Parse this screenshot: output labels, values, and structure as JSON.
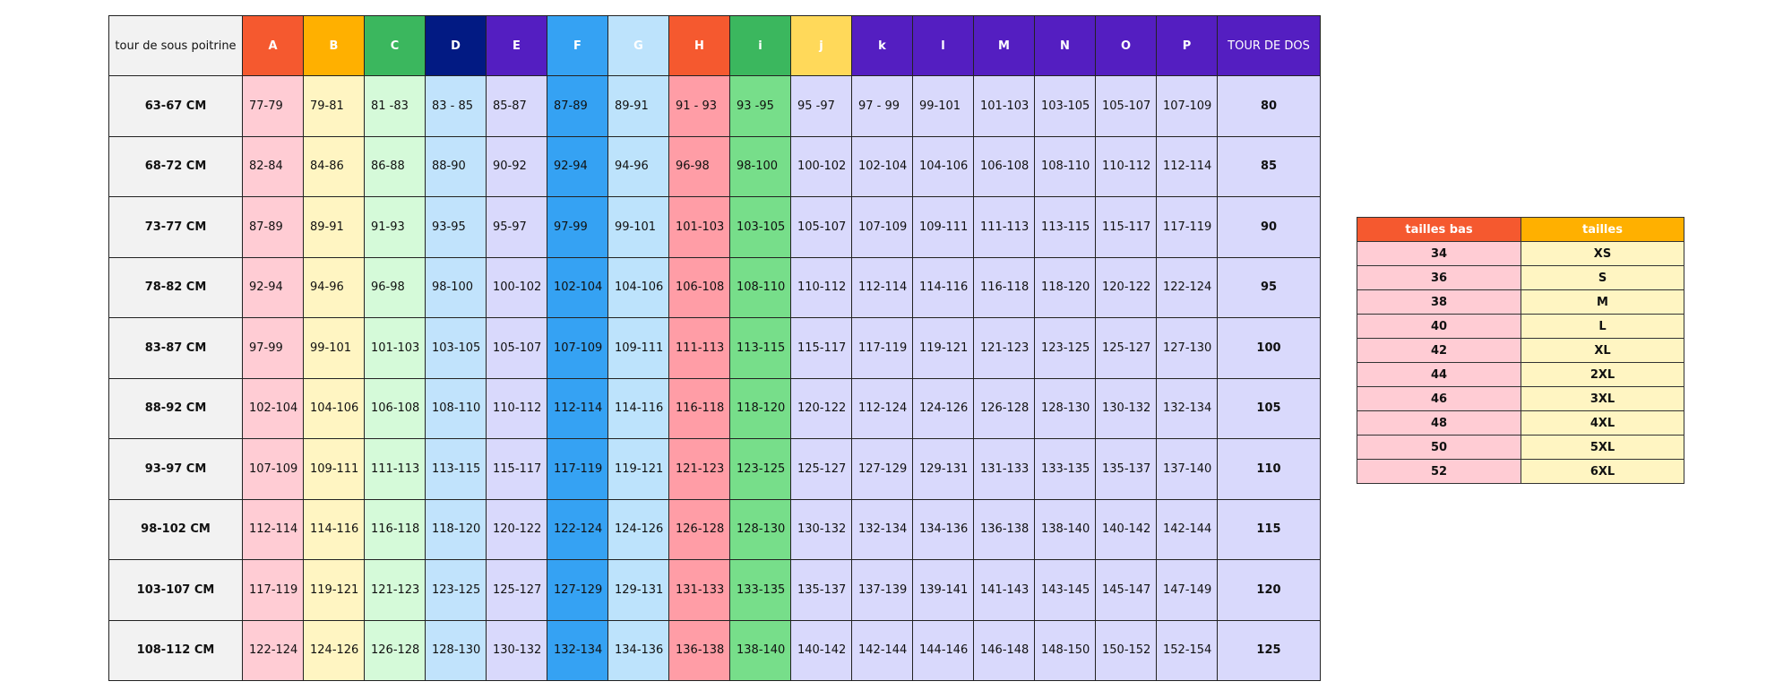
{
  "main_table": {
    "header_label": "tour de sous poitrine",
    "columns": [
      {
        "label": "A",
        "header_color": "#F5592F",
        "cell_color": "#FFCCD4"
      },
      {
        "label": "B",
        "header_color": "#FFB000",
        "cell_color": "#FFF5C2"
      },
      {
        "label": "C",
        "header_color": "#3BB75E",
        "cell_color": "#D5FAD9"
      },
      {
        "label": "D",
        "header_color": "#021A83",
        "cell_color": "#C1E3FC"
      },
      {
        "label": "E",
        "header_color": "#541EC1",
        "cell_color": "#D9D9FC"
      },
      {
        "label": "F",
        "header_color": "#35A2F3",
        "cell_color": "#35A2F3"
      },
      {
        "label": "G",
        "header_color": "#BDE3FC",
        "cell_color": "#BDE3FC"
      },
      {
        "label": "H",
        "header_color": "#F5592F",
        "cell_color": "#FF9DA6"
      },
      {
        "label": "i",
        "header_color": "#3BB75E",
        "cell_color": "#77DE8A"
      },
      {
        "label": "j",
        "header_color": "#FFD95A",
        "cell_color": "#D9D9FC"
      },
      {
        "label": "k",
        "header_color": "#541EC1",
        "cell_color": "#D9D9FC"
      },
      {
        "label": "l",
        "header_color": "#541EC1",
        "cell_color": "#D9D9FC"
      },
      {
        "label": "M",
        "header_color": "#541EC1",
        "cell_color": "#D9D9FC"
      },
      {
        "label": "N",
        "header_color": "#541EC1",
        "cell_color": "#D9D9FC"
      },
      {
        "label": "O",
        "header_color": "#541EC1",
        "cell_color": "#D9D9FC"
      },
      {
        "label": "P",
        "header_color": "#541EC1",
        "cell_color": "#D9D9FC"
      }
    ],
    "last_header": {
      "label": "TOUR DE DOS",
      "header_color": "#541EC1",
      "cell_color": "#D9D9FC"
    },
    "rows": [
      {
        "label": "63-67 CM",
        "cells": [
          "77-79",
          "79-81",
          "81 -83",
          "83 - 85",
          "85-87",
          "87-89",
          "89-91",
          "91 - 93",
          "93 -95",
          "95 -97",
          "97 - 99",
          "99-101",
          "101-103",
          "103-105",
          "105-107",
          "107-109"
        ],
        "back": "80"
      },
      {
        "label": "68-72 CM",
        "cells": [
          "82-84",
          "84-86",
          "86-88",
          "88-90",
          "90-92",
          "92-94",
          "94-96",
          "96-98",
          "98-100",
          "100-102",
          "102-104",
          "104-106",
          "106-108",
          "108-110",
          "110-112",
          "112-114"
        ],
        "back": "85"
      },
      {
        "label": "73-77 CM",
        "cells": [
          "87-89",
          "89-91",
          "91-93",
          "93-95",
          "95-97",
          "97-99",
          "99-101",
          "101-103",
          "103-105",
          "105-107",
          "107-109",
          "109-111",
          "111-113",
          "113-115",
          "115-117",
          "117-119"
        ],
        "back": "90"
      },
      {
        "label": "78-82 CM",
        "cells": [
          "92-94",
          "94-96",
          "96-98",
          "98-100",
          "100-102",
          "102-104",
          "104-106",
          "106-108",
          "108-110",
          "110-112",
          "112-114",
          "114-116",
          "116-118",
          "118-120",
          "120-122",
          "122-124"
        ],
        "back": "95"
      },
      {
        "label": "83-87 CM",
        "cells": [
          "97-99",
          "99-101",
          "101-103",
          "103-105",
          "105-107",
          "107-109",
          "109-111",
          "111-113",
          "113-115",
          "115-117",
          "117-119",
          "119-121",
          "121-123",
          "123-125",
          "125-127",
          "127-130"
        ],
        "back": "100"
      },
      {
        "label": "88-92 CM",
        "cells": [
          "102-104",
          "104-106",
          "106-108",
          "108-110",
          "110-112",
          "112-114",
          "114-116",
          "116-118",
          "118-120",
          "120-122",
          "112-124",
          "124-126",
          "126-128",
          "128-130",
          "130-132",
          "132-134"
        ],
        "back": "105"
      },
      {
        "label": "93-97 CM",
        "cells": [
          "107-109",
          "109-111",
          "111-113",
          "113-115",
          "115-117",
          "117-119",
          "119-121",
          "121-123",
          "123-125",
          "125-127",
          "127-129",
          "129-131",
          "131-133",
          "133-135",
          "135-137",
          "137-140"
        ],
        "back": "110"
      },
      {
        "label": "98-102 CM",
        "cells": [
          "112-114",
          "114-116",
          "116-118",
          "118-120",
          "120-122",
          "122-124",
          "124-126",
          "126-128",
          "128-130",
          "130-132",
          "132-134",
          "134-136",
          "136-138",
          "138-140",
          "140-142",
          "142-144"
        ],
        "back": "115"
      },
      {
        "label": "103-107 CM",
        "cells": [
          "117-119",
          "119-121",
          "121-123",
          "123-125",
          "125-127",
          "127-129",
          "129-131",
          "131-133",
          "133-135",
          "135-137",
          "137-139",
          "139-141",
          "141-143",
          "143-145",
          "145-147",
          "147-149"
        ],
        "back": "120"
      },
      {
        "label": "108-112 CM",
        "cells": [
          "122-124",
          "124-126",
          "126-128",
          "128-130",
          "130-132",
          "132-134",
          "134-136",
          "136-138",
          "138-140",
          "140-142",
          "142-144",
          "144-146",
          "146-148",
          "148-150",
          "150-152",
          "152-154"
        ],
        "back": "125"
      }
    ]
  },
  "size_table": {
    "headers": [
      {
        "label": "tailles bas",
        "header_color": "#F5592F",
        "cell_color": "#FFCCD4"
      },
      {
        "label": "tailles",
        "header_color": "#FFB000",
        "cell_color": "#FFF5C2"
      }
    ],
    "rows": [
      [
        "34",
        "XS"
      ],
      [
        "36",
        "S"
      ],
      [
        "38",
        "M"
      ],
      [
        "40",
        "L"
      ],
      [
        "42",
        "XL"
      ],
      [
        "44",
        "2XL"
      ],
      [
        "46",
        "3XL"
      ],
      [
        "48",
        "4XL"
      ],
      [
        "50",
        "5XL"
      ],
      [
        "52",
        "6XL"
      ]
    ]
  }
}
